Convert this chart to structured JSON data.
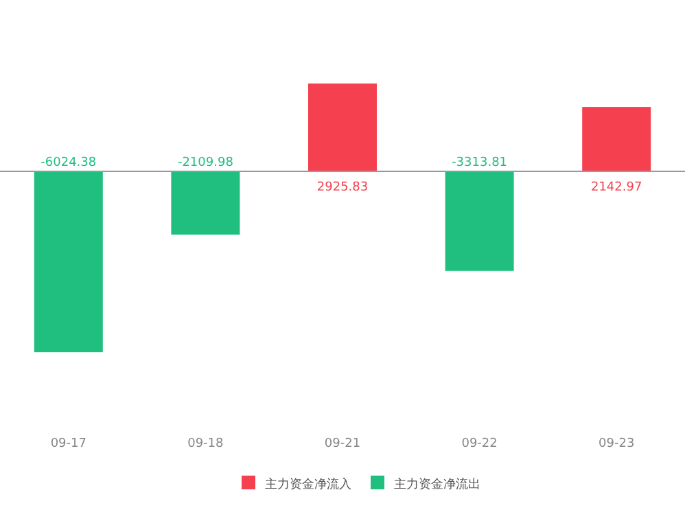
{
  "chart_data": {
    "type": "bar",
    "categories": [
      "09-17",
      "09-18",
      "09-21",
      "09-22",
      "09-23"
    ],
    "series": [
      {
        "name": "主力资金净流入",
        "color": "#f5414f",
        "values": [
          null,
          null,
          2925.83,
          null,
          2142.97
        ]
      },
      {
        "name": "主力资金净流出",
        "color": "#21bf7f",
        "values": [
          -6024.38,
          -2109.98,
          null,
          -3313.81,
          null
        ]
      }
    ],
    "data_labels": true,
    "legend": "bottom"
  }
}
